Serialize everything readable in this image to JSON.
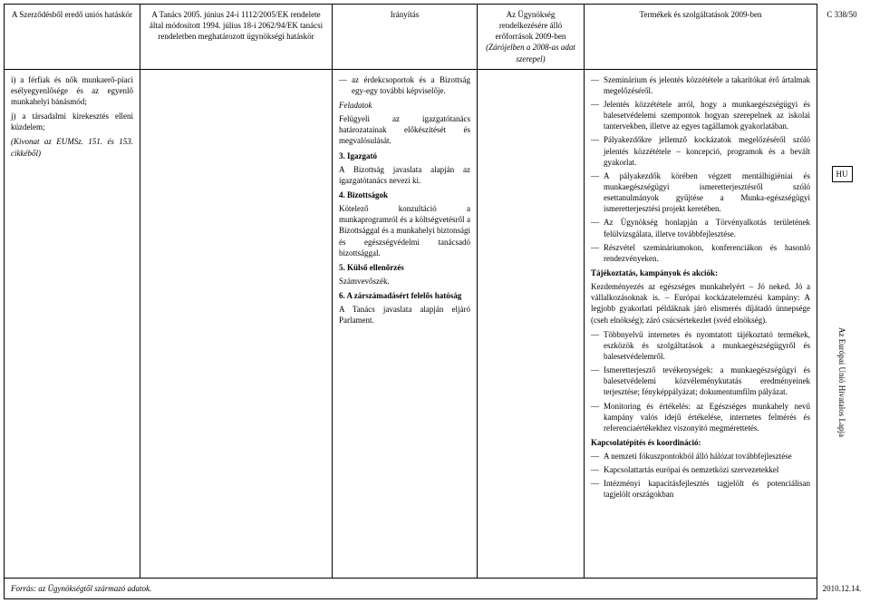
{
  "side": {
    "top": "C 338/50",
    "hu": "HU",
    "mid": "Az Európai Unió Hivatalos Lapja",
    "bottom": "2010.12.14."
  },
  "headers": {
    "h1": "A Szerződésből eredő uniós hatáskör",
    "h2": "A Tanács 2005. június 24-i 1112/2005/EK rendelete által módosított 1994. július 18-i 2062/94/EK tanácsi rendeletben meghatározott ügynökségi hatáskör",
    "h3": "Irányítás",
    "h4_l1": "Az Ügynökség rendelkezésére álló erőforrások 2009-ben",
    "h4_l2": "(Zárójelben a 2008-as adat szerepel)",
    "h5": "Termékek és szolgáltatások 2009-ben"
  },
  "col1": {
    "p1": "i) a férfiak és nők munkaerő-piaci esély­egyenlősége és az egyenlő munkahelyi bánásmód;",
    "p2": "j) a társadalmi kirekesztés elleni küzdelem;",
    "p3": "(Kivonat az EUMSz. 151. és 153. cikkéből)"
  },
  "col3": {
    "intro": "az érdekcsoportok és a Bizottság egy-egy további képviselője.",
    "feladatok_head": "Feladatok",
    "feladatok_body": "Felügyeli az igazgatótanács határozatainak előkészítését és megvalósulását.",
    "s3_head": "3. Igazgató",
    "s3_body": "A Bizottság javaslata alapján az igazgatótanács nevezi ki.",
    "s4_head": "4. Bizottságok",
    "s4_body": "Kötelező konzultáció a munkaprogramról és a költ­ségvetésről a Bizottsággal és a munkahelyi biztonsági és egészségvédelmi tanácsadó bizottsággal.",
    "s5_head": "5. Külső ellenőrzés",
    "s5_body": "Számvevőszék.",
    "s6_head": "6. A zárszámadásért felelős hatóság",
    "s6_body": "A Tanács javaslata alapján eljáró Parlament."
  },
  "col5": {
    "items1": [
      "Szeminárium és jelentés közzététele a takarítókat érő ártalmak megelőzéséről.",
      "Jelentés közzététele arról, hogy a munkaegészség­ügyi és balesetvédelemi szempontok hogyan szerepelnek az iskolai tantervekben, illetve az egyes tagállamok gyakorlatában.",
      "Pályakezdőkre jellemző kockázatok megelőzéséről szóló jelentés közzététele – koncepció, programok és a bevált gyakorlat.",
      "A pályakezdők körében végzett mentálhigiéniai és munkaegészségügyi ismeretterjesztésről szóló esettanulmányok gyűjtése a Munka-egészségügyi ismeretterjesztési projekt keretében.",
      "Az Ügynökség honlapján a Törvényalkotás terü­letének felülvizsgálata, illetve továbbfejlesztése.",
      "Részvétel szemináriumokon, konferenciákon és hasonló rendezvényeken."
    ],
    "tajek_head": "Tájékoztatás, kampányok és akciók:",
    "tajek_body": "Kezdeményezés az egészséges munkahelyért – Jó neked. Jó a vállalkozásoknak is. – Európai kockázat­elemzési kampány: A legjobb gyakorlati példáknak járó elismerés díjátadó ünnepsége (cseh elnökség); záró csúcsértekezlet (svéd elnökség).",
    "items2": [
      "Többnyelvű internetes és nyomtatott tájékoztató termékek, eszközök és szolgáltatások a munka­egészségügyről és balesetvédelemről.",
      "Ismeretterjesztő tevékenységek: a munkaegészség­ügyi és balesetvédelemi közvéleménykutatás ered­ményeinek terjesztése; fényképpályázat; doku­mentumfilm pályázat.",
      "Monitoring és értékelés: az Egészséges munkahely nevű kampány valós idejű értékelése, internetes felmérés és referenciaértékekhez viszonyító megmérettetés."
    ],
    "kapcs_head": "Kapcsolatépítés és koordináció:",
    "items3": [
      "A nemzeti fókuszpontokból álló hálózat tovább­fejlesztése",
      "Kapcsolattartás európai és nemzetközi szerveze­tekkel",
      "Intézményi kapacitásfejlesztés tagjelölt és potenci­álisan tagjelölt országokban"
    ]
  },
  "footer": "Forrás: az Ügynökségtől származó adatok."
}
